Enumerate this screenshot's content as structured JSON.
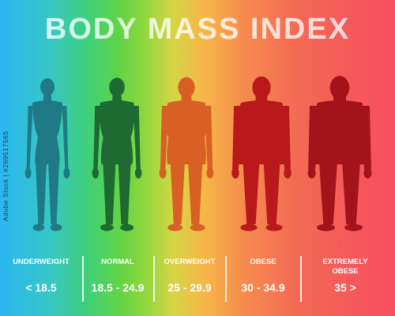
{
  "title": "BODY MASS INDEX",
  "watermark": "Adobe Stock | #269517565",
  "figures": [
    {
      "name": "underweight-body-icon",
      "color": "#1f7a86",
      "build": 0.0
    },
    {
      "name": "normal-body-icon",
      "color": "#1e6a32",
      "build": 0.25
    },
    {
      "name": "overweight-body-icon",
      "color": "#d86025",
      "build": 0.5
    },
    {
      "name": "obese-body-icon",
      "color": "#b9191b",
      "build": 0.78
    },
    {
      "name": "extremely-obese-body-icon",
      "color": "#a5131a",
      "build": 1.0
    }
  ],
  "categories": [
    {
      "label": "UNDERWEIGHT",
      "range": "< 18.5"
    },
    {
      "label": "NORMAL",
      "range": "18.5 - 24.9"
    },
    {
      "label": "OVERWEIGHT",
      "range": "25 - 29.9"
    },
    {
      "label": "OBESE",
      "range": "30 - 34.9"
    },
    {
      "label": "EXTREMELY\nOBESE",
      "range": "35 >"
    }
  ]
}
